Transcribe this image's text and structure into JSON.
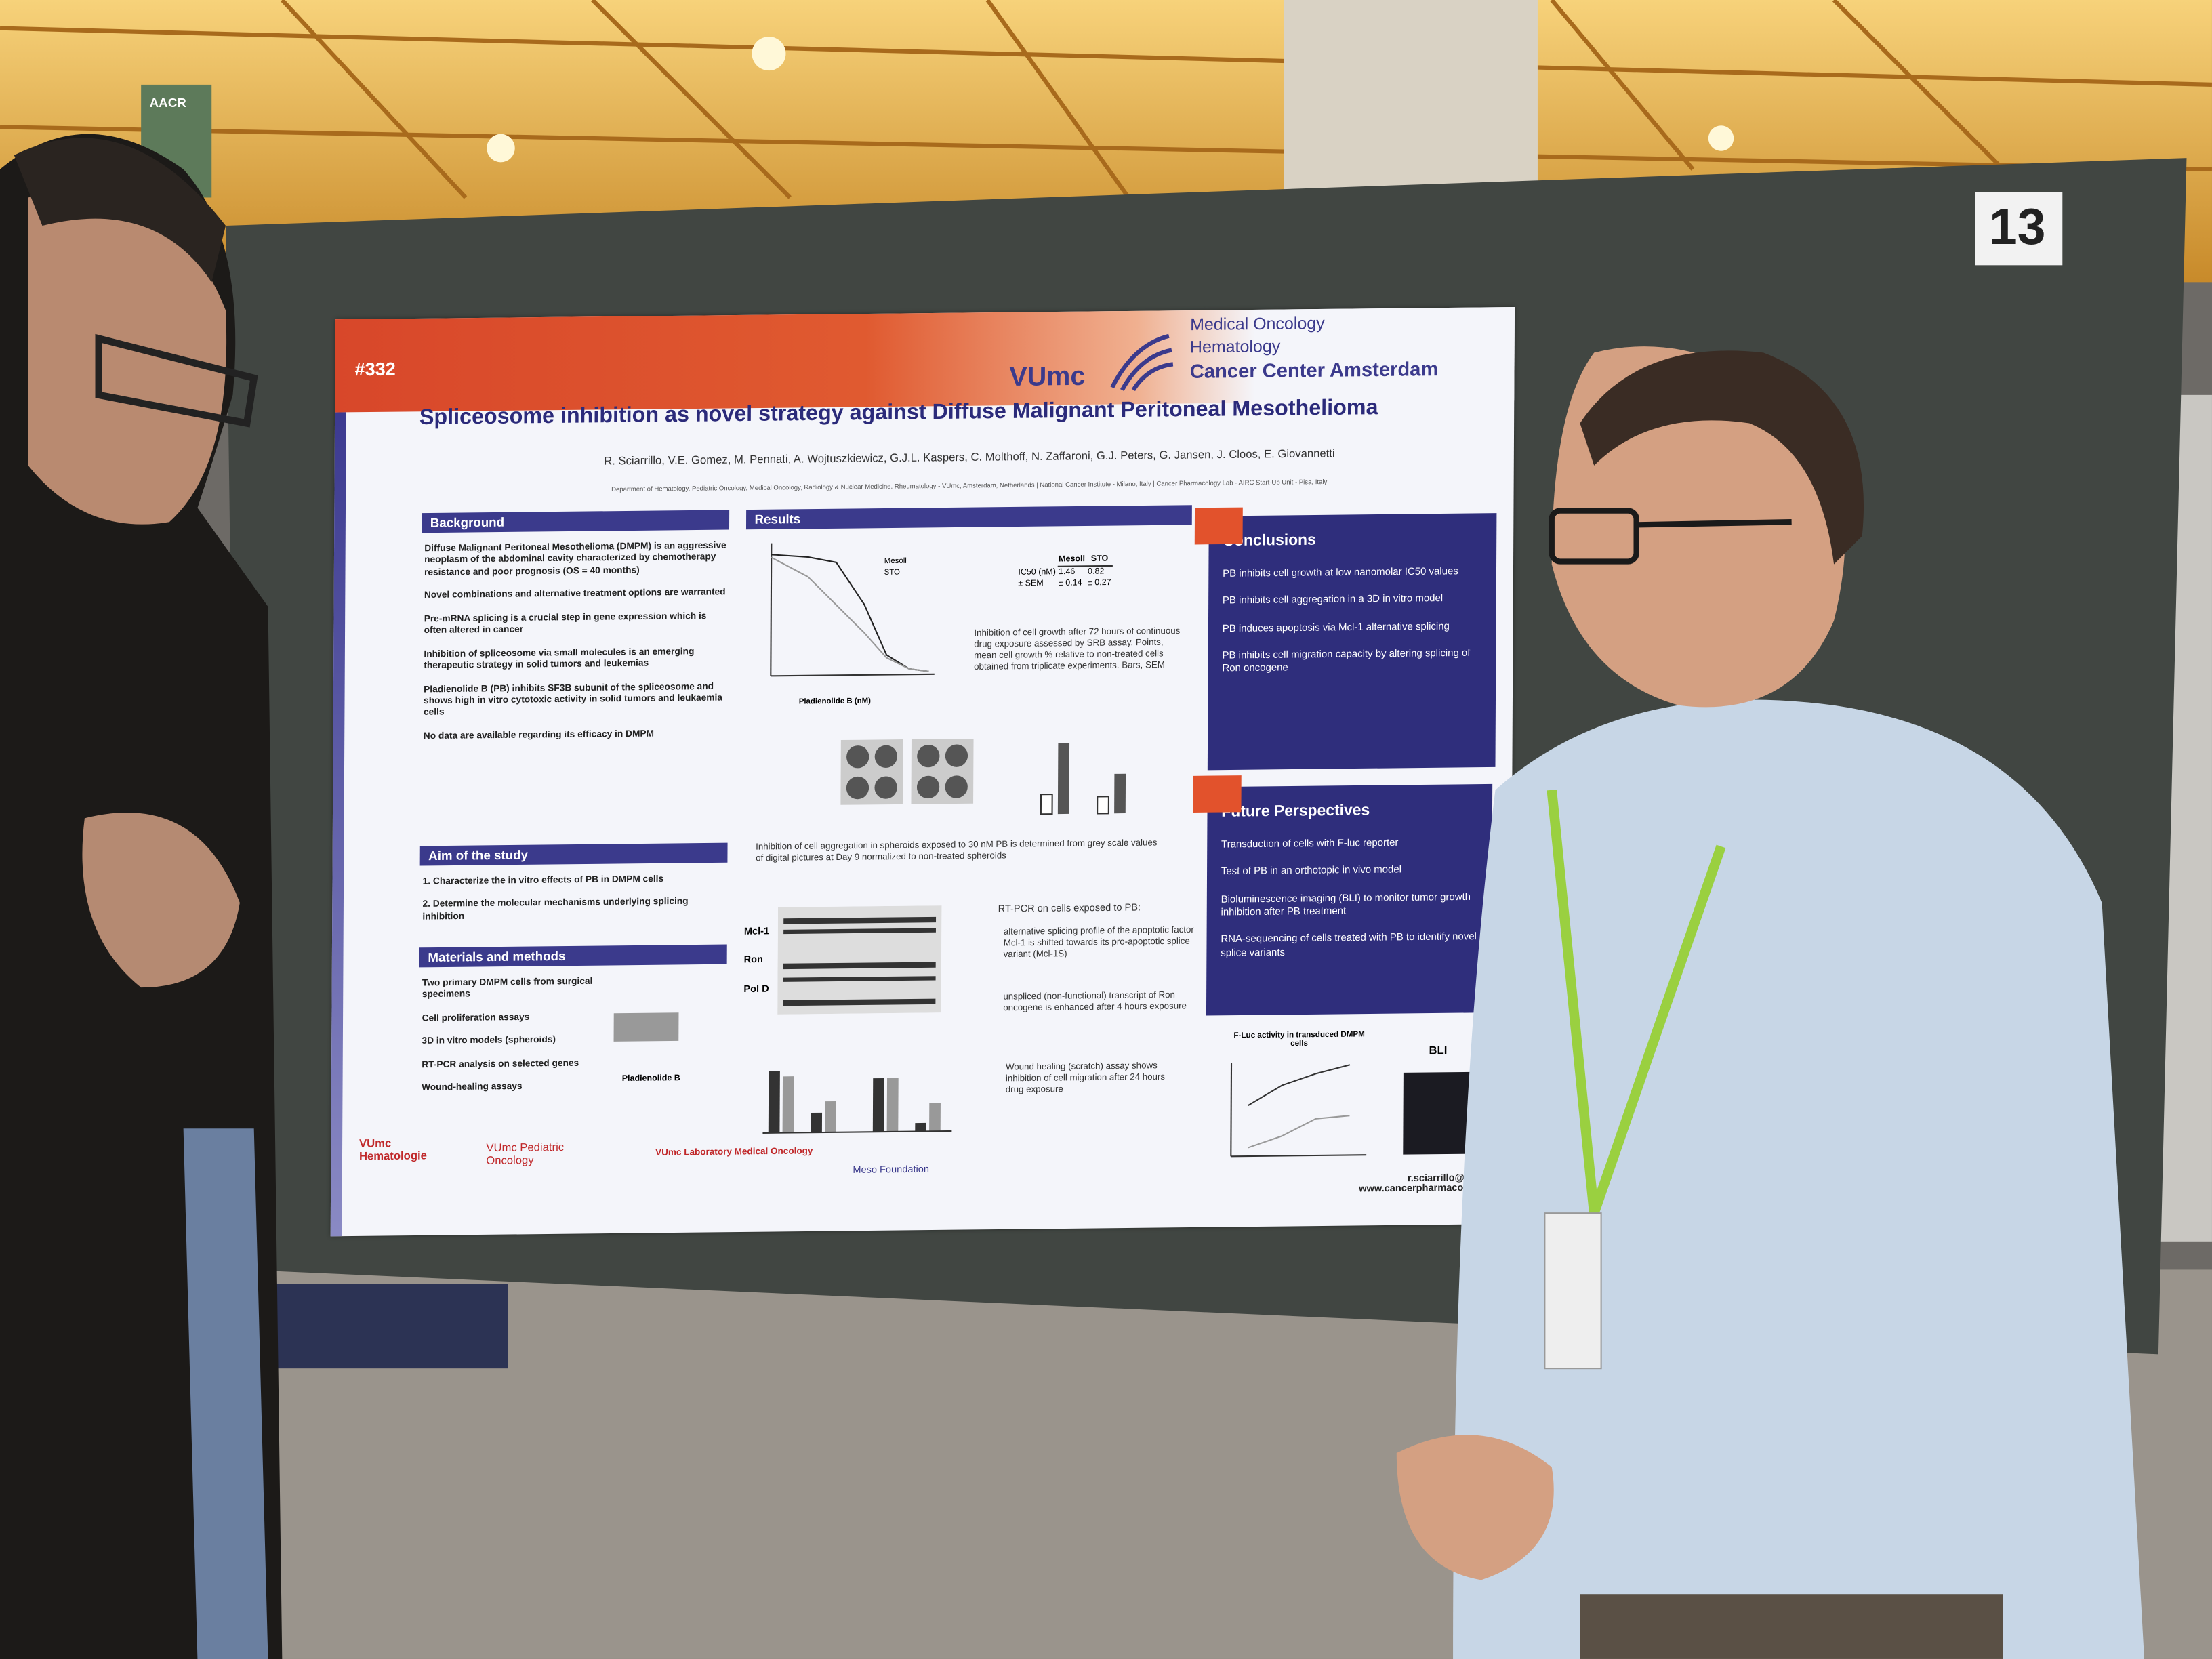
{
  "signage": "AACR",
  "board_number": "13",
  "poster": {
    "number": "#332",
    "institution": {
      "logo": "VUmc",
      "lines": [
        "Medical Oncology",
        "Hematology",
        "Cancer Center Amsterdam"
      ]
    },
    "title": "Spliceosome inhibition as novel strategy against Diffuse Malignant Peritoneal Mesothelioma",
    "authors": "R. Sciarrillo, V.E. Gomez, M. Pennati, A. Wojtuszkiewicz, G.J.L. Kaspers, C. Molthoff, N. Zaffaroni, G.J. Peters, G. Jansen, J. Cloos, E. Giovannetti",
    "affiliations": "Department of Hematology, Pediatric Oncology, Medical Oncology, Radiology & Nuclear Medicine, Rheumatology - VUmc, Amsterdam, Netherlands | National Cancer Institute - Milano, Italy | Cancer Pharmacology Lab - AIRC Start-Up Unit - Pisa, Italy",
    "background": {
      "heading": "Background",
      "items": [
        "Diffuse Malignant Peritoneal Mesothelioma (DMPM) is an aggressive neoplasm of the abdominal cavity characterized by chemotherapy resistance and poor prognosis (OS = 40 months)",
        "Novel combinations and alternative treatment options are warranted",
        "Pre-mRNA splicing is a crucial step in gene expression which is often altered in cancer",
        "Inhibition of spliceosome via small molecules is an emerging therapeutic strategy in solid tumors and leukemias",
        "Pladienolide B (PB) inhibits SF3B subunit of the spliceosome and shows high in vitro cytotoxic activity in solid tumors and leukaemia cells",
        "No data are available regarding its efficacy in DMPM"
      ]
    },
    "aim": {
      "heading": "Aim of the study",
      "items": [
        "1. Characterize the in vitro effects of PB in DMPM cells",
        "2. Determine the molecular mechanisms underlying splicing inhibition"
      ]
    },
    "methods": {
      "heading": "Materials and methods",
      "items": [
        "Two primary DMPM cells from surgical specimens",
        "Cell proliferation assays",
        "3D in vitro models (spheroids)",
        "RT-PCR analysis on selected genes",
        "Wound-healing assays"
      ],
      "structure_label": "Pladienolide B"
    },
    "results": {
      "heading": "Results",
      "chart_axis": "Pladienolide B (nM)",
      "legend": [
        "Mesoll",
        "STO"
      ],
      "table": {
        "header": [
          "Mesoll",
          "STO"
        ],
        "rows": [
          [
            "IC50 (nM)",
            "1.46",
            "0.82"
          ],
          [
            "± SEM",
            "± 0.14",
            "± 0.27"
          ]
        ]
      },
      "gel_labels": [
        "Mcl-1",
        "Ron",
        "Pol D"
      ],
      "notes": [
        "Inhibition of cell growth after 72 hours of continuous drug exposure assessed by SRB assay. Points, mean cell growth % relative to non-treated cells obtained from triplicate experiments. Bars, SEM",
        "Inhibition of cell aggregation in spheroids exposed to 30 nM PB is determined from grey scale values of digital pictures at Day 9 normalized to non-treated spheroids",
        "RT-PCR on cells exposed to PB:",
        "alternative splicing profile of the apoptotic factor Mcl-1 is shifted towards its pro-apoptotic splice variant (Mcl-1S)",
        "unspliced (non-functional) transcript of Ron oncogene is enhanced after 4 hours exposure",
        "Wound healing (scratch) assay shows inhibition of cell migration after 24 hours drug exposure"
      ],
      "fluc_title": "F-Luc activity in transduced DMPM cells",
      "bli": "BLI"
    },
    "conclusions": {
      "heading": "Conclusions",
      "items": [
        "PB inhibits cell growth at low nanomolar IC50 values",
        "PB inhibits cell aggregation in a 3D in vitro model",
        "PB induces apoptosis via Mcl-1 alternative splicing",
        "PB inhibits cell migration capacity by altering splicing of Ron oncogene"
      ]
    },
    "future": {
      "heading": "Future Perspectives",
      "items": [
        "Transduction of cells with F-luc reporter",
        "Test of PB in an orthotopic in vivo model",
        "Bioluminescence imaging (BLI) to monitor tumor growth inhibition after PB treatment",
        "RNA-sequencing of cells treated with PB to identify novel splice variants"
      ]
    },
    "contact": [
      "r.sciarrillo@vumc.nl",
      "www.cancerpharmacology.org"
    ],
    "footer_logos": [
      "VUmc Hematologie",
      "VUmc Pediatric Oncology",
      "VUmc Laboratory Medical Oncology",
      "Meso Foundation"
    ]
  }
}
